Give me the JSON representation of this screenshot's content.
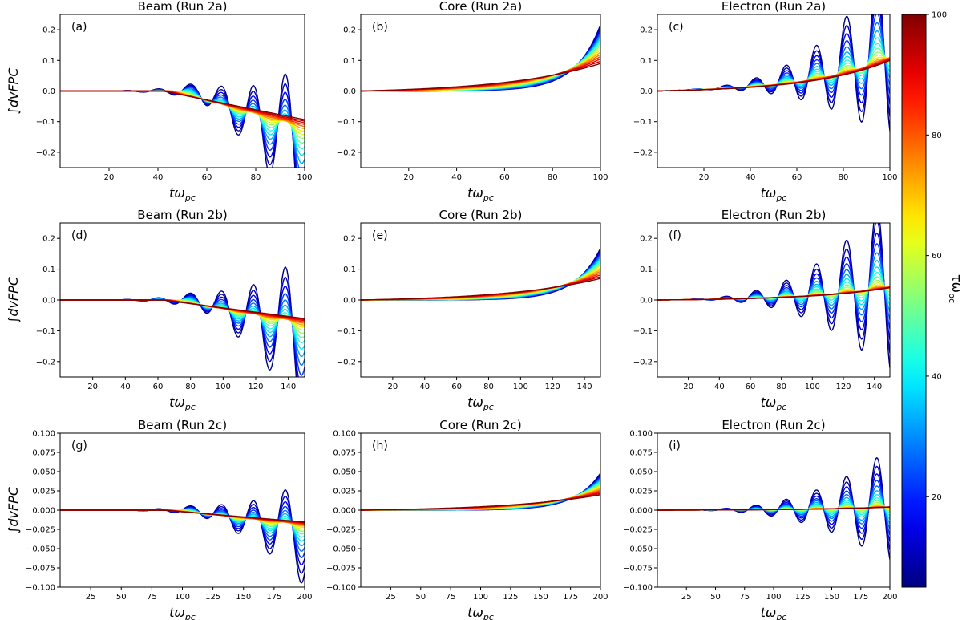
{
  "figure": {
    "colorbar": {
      "label": "τω",
      "label_sub": "pc",
      "min": 5,
      "max": 100,
      "ticks": [
        20,
        40,
        60,
        80,
        100
      ],
      "colormap": "jet"
    },
    "x_label": "tω",
    "x_label_sub": "pc",
    "y_label": "∫dvFPC"
  },
  "chart_data": [
    {
      "type": "line",
      "label": "(a)",
      "title": "Beam (Run 2a)",
      "species": "beam",
      "xlim": [
        0,
        100
      ],
      "ylim": [
        -0.25,
        0.25
      ],
      "xticks": [
        20,
        40,
        60,
        80,
        100
      ],
      "yticks": [
        "-0.2",
        "-0.1",
        "0.0",
        "0.1",
        "0.2"
      ],
      "series_count": 18,
      "tau_range": [
        5,
        100
      ]
    },
    {
      "type": "line",
      "label": "(b)",
      "title": "Core (Run 2a)",
      "species": "core",
      "xlim": [
        0,
        100
      ],
      "ylim": [
        -0.25,
        0.25
      ],
      "xticks": [
        20,
        40,
        60,
        80,
        100
      ],
      "yticks": [
        "-0.2",
        "-0.1",
        "0.0",
        "0.1",
        "0.2"
      ],
      "series_count": 18,
      "tau_range": [
        5,
        100
      ]
    },
    {
      "type": "line",
      "label": "(c)",
      "title": "Electron (Run 2a)",
      "species": "electron",
      "xlim": [
        0,
        100
      ],
      "ylim": [
        -0.25,
        0.25
      ],
      "xticks": [
        20,
        40,
        60,
        80,
        100
      ],
      "yticks": [
        "-0.2",
        "-0.1",
        "0.0",
        "0.1",
        "0.2"
      ],
      "series_count": 18,
      "tau_range": [
        5,
        100
      ]
    },
    {
      "type": "line",
      "label": "(d)",
      "title": "Beam (Run 2b)",
      "species": "beam",
      "xlim": [
        0,
        150
      ],
      "ylim": [
        -0.25,
        0.25
      ],
      "xticks": [
        20,
        40,
        60,
        80,
        100,
        120,
        140
      ],
      "yticks": [
        "-0.2",
        "-0.1",
        "0.0",
        "0.1",
        "0.2"
      ],
      "series_count": 18,
      "tau_range": [
        5,
        100
      ]
    },
    {
      "type": "line",
      "label": "(e)",
      "title": "Core (Run 2b)",
      "species": "core",
      "xlim": [
        0,
        150
      ],
      "ylim": [
        -0.25,
        0.25
      ],
      "xticks": [
        20,
        40,
        60,
        80,
        100,
        120,
        140
      ],
      "yticks": [
        "-0.2",
        "-0.1",
        "0.0",
        "0.1",
        "0.2"
      ],
      "series_count": 18,
      "tau_range": [
        5,
        100
      ]
    },
    {
      "type": "line",
      "label": "(f)",
      "title": "Electron (Run 2b)",
      "species": "electron",
      "xlim": [
        0,
        150
      ],
      "ylim": [
        -0.25,
        0.25
      ],
      "xticks": [
        20,
        40,
        60,
        80,
        100,
        120,
        140
      ],
      "yticks": [
        "-0.2",
        "-0.1",
        "0.0",
        "0.1",
        "0.2"
      ],
      "series_count": 18,
      "tau_range": [
        5,
        100
      ]
    },
    {
      "type": "line",
      "label": "(g)",
      "title": "Beam (Run 2c)",
      "species": "beam",
      "xlim": [
        0,
        200
      ],
      "ylim": [
        -0.1,
        0.1
      ],
      "xticks": [
        25,
        50,
        75,
        100,
        125,
        150,
        175,
        200
      ],
      "yticks": [
        "-0.100",
        "-0.075",
        "-0.050",
        "-0.025",
        "0.000",
        "0.025",
        "0.050",
        "0.075",
        "0.100"
      ],
      "series_count": 18,
      "tau_range": [
        5,
        100
      ]
    },
    {
      "type": "line",
      "label": "(h)",
      "title": "Core (Run 2c)",
      "species": "core",
      "xlim": [
        0,
        200
      ],
      "ylim": [
        -0.1,
        0.1
      ],
      "xticks": [
        25,
        50,
        75,
        100,
        125,
        150,
        175,
        200
      ],
      "yticks": [
        "-0.100",
        "-0.075",
        "-0.050",
        "-0.025",
        "0.000",
        "0.025",
        "0.050",
        "0.075",
        "0.100"
      ],
      "series_count": 18,
      "tau_range": [
        5,
        100
      ]
    },
    {
      "type": "line",
      "label": "(i)",
      "title": "Electron (Run 2c)",
      "species": "electron",
      "xlim": [
        0,
        200
      ],
      "ylim": [
        -0.1,
        0.1
      ],
      "xticks": [
        25,
        50,
        75,
        100,
        125,
        150,
        175,
        200
      ],
      "yticks": [
        "-0.100",
        "-0.075",
        "-0.050",
        "-0.025",
        "0.000",
        "0.025",
        "0.050",
        "0.075",
        "0.100"
      ],
      "series_count": 18,
      "tau_range": [
        5,
        100
      ]
    }
  ]
}
